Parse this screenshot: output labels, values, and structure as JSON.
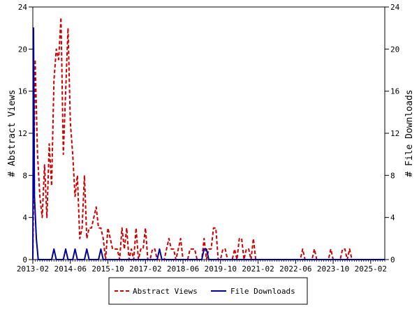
{
  "chart_data": {
    "type": "line",
    "xlabel": "",
    "ylabel_left": "# Abstract Views",
    "ylabel_right": "# File Downloads",
    "ylim": [
      0,
      24
    ],
    "y_ticks": [
      0,
      4,
      8,
      12,
      16,
      20,
      24
    ],
    "x_tick_labels": [
      "2013-02",
      "2014-06",
      "2015-10",
      "2017-02",
      "2018-06",
      "2019-10",
      "2021-02",
      "2022-06",
      "2023-10",
      "2025-02"
    ],
    "x_start": "2013-02",
    "x_months": 150,
    "grid": false,
    "legend_position": "bottom",
    "series": [
      {
        "name": "Abstract Views",
        "color": "#cc0000",
        "style": "dashed",
        "points": [
          [
            0,
            0
          ],
          [
            1,
            19
          ],
          [
            2,
            10
          ],
          [
            3,
            6
          ],
          [
            4,
            4
          ],
          [
            5,
            9
          ],
          [
            6,
            4
          ],
          [
            7,
            11
          ],
          [
            8,
            7
          ],
          [
            9,
            17
          ],
          [
            10,
            20
          ],
          [
            11,
            19
          ],
          [
            12,
            23
          ],
          [
            13,
            10
          ],
          [
            14,
            16
          ],
          [
            15,
            22
          ],
          [
            16,
            13
          ],
          [
            17,
            10
          ],
          [
            18,
            6
          ],
          [
            19,
            8
          ],
          [
            20,
            2
          ],
          [
            21,
            3
          ],
          [
            22,
            8
          ],
          [
            23,
            2
          ],
          [
            24,
            3
          ],
          [
            25,
            3
          ],
          [
            26,
            4
          ],
          [
            27,
            5
          ],
          [
            28,
            3
          ],
          [
            29,
            3
          ],
          [
            30,
            2
          ],
          [
            31,
            0
          ],
          [
            32,
            3
          ],
          [
            33,
            2
          ],
          [
            34,
            1
          ],
          [
            35,
            1
          ],
          [
            36,
            1
          ],
          [
            37,
            0
          ],
          [
            38,
            3
          ],
          [
            39,
            1
          ],
          [
            40,
            3
          ],
          [
            41,
            0
          ],
          [
            42,
            1
          ],
          [
            43,
            0
          ],
          [
            44,
            3
          ],
          [
            45,
            0
          ],
          [
            46,
            1
          ],
          [
            47,
            1
          ],
          [
            48,
            3
          ],
          [
            49,
            0
          ],
          [
            50,
            0
          ],
          [
            51,
            1
          ],
          [
            52,
            1
          ],
          [
            53,
            0
          ],
          [
            54,
            0
          ],
          [
            55,
            0
          ],
          [
            56,
            0
          ],
          [
            57,
            1
          ],
          [
            58,
            2
          ],
          [
            59,
            1
          ],
          [
            60,
            1
          ],
          [
            61,
            0
          ],
          [
            62,
            1
          ],
          [
            63,
            2
          ],
          [
            64,
            0
          ],
          [
            65,
            0
          ],
          [
            66,
            0
          ],
          [
            67,
            1
          ],
          [
            68,
            1
          ],
          [
            69,
            1
          ],
          [
            70,
            0
          ],
          [
            71,
            0
          ],
          [
            72,
            0
          ],
          [
            73,
            2
          ],
          [
            74,
            0
          ],
          [
            75,
            1
          ],
          [
            76,
            1
          ],
          [
            77,
            3
          ],
          [
            78,
            3
          ],
          [
            79,
            0
          ],
          [
            80,
            0
          ],
          [
            81,
            1
          ],
          [
            82,
            1
          ],
          [
            83,
            0
          ],
          [
            84,
            0
          ],
          [
            85,
            0
          ],
          [
            86,
            1
          ],
          [
            87,
            0
          ],
          [
            88,
            2
          ],
          [
            89,
            2
          ],
          [
            90,
            0
          ],
          [
            91,
            1
          ],
          [
            92,
            1
          ],
          [
            93,
            0
          ],
          [
            94,
            2
          ],
          [
            95,
            0
          ],
          [
            96,
            0
          ],
          [
            97,
            0
          ],
          [
            98,
            0
          ],
          [
            99,
            0
          ],
          [
            100,
            0
          ],
          [
            101,
            0
          ],
          [
            102,
            0
          ],
          [
            103,
            0
          ],
          [
            104,
            0
          ],
          [
            105,
            0
          ],
          [
            106,
            0
          ],
          [
            107,
            0
          ],
          [
            108,
            0
          ],
          [
            109,
            0
          ],
          [
            110,
            0
          ],
          [
            111,
            0
          ],
          [
            112,
            0
          ],
          [
            113,
            0
          ],
          [
            114,
            0
          ],
          [
            115,
            1
          ],
          [
            116,
            0
          ],
          [
            117,
            0
          ],
          [
            118,
            0
          ],
          [
            119,
            0
          ],
          [
            120,
            1
          ],
          [
            121,
            0
          ],
          [
            122,
            0
          ],
          [
            123,
            0
          ],
          [
            124,
            0
          ],
          [
            125,
            0
          ],
          [
            126,
            0
          ],
          [
            127,
            1
          ],
          [
            128,
            0
          ],
          [
            129,
            0
          ],
          [
            130,
            0
          ],
          [
            131,
            0
          ],
          [
            132,
            1
          ],
          [
            133,
            1
          ],
          [
            134,
            0
          ],
          [
            135,
            1
          ],
          [
            136,
            0
          ],
          [
            137,
            0
          ],
          [
            138,
            0
          ],
          [
            139,
            0
          ],
          [
            140,
            0
          ],
          [
            141,
            0
          ],
          [
            142,
            0
          ],
          [
            143,
            0
          ],
          [
            144,
            0
          ],
          [
            145,
            0
          ],
          [
            146,
            0
          ],
          [
            147,
            0
          ],
          [
            148,
            0
          ],
          [
            149,
            0
          ],
          [
            150,
            0
          ]
        ]
      },
      {
        "name": "File Downloads",
        "color": "#000099",
        "style": "solid",
        "points": [
          [
            0,
            0
          ],
          [
            0.3,
            22
          ],
          [
            0.7,
            6
          ],
          [
            1.5,
            2
          ],
          [
            2.3,
            0
          ],
          [
            3,
            0
          ],
          [
            8,
            0
          ],
          [
            9,
            1
          ],
          [
            10,
            0
          ],
          [
            13,
            0
          ],
          [
            14,
            1
          ],
          [
            15,
            0
          ],
          [
            17,
            0
          ],
          [
            18,
            1
          ],
          [
            19,
            0
          ],
          [
            22,
            0
          ],
          [
            23,
            1
          ],
          [
            24,
            0
          ],
          [
            28,
            0
          ],
          [
            29,
            1
          ],
          [
            30,
            0
          ],
          [
            53,
            0
          ],
          [
            54,
            1
          ],
          [
            55,
            0
          ],
          [
            72,
            0
          ],
          [
            73,
            1
          ],
          [
            74,
            1
          ],
          [
            75,
            0
          ],
          [
            150,
            0
          ]
        ]
      }
    ]
  }
}
